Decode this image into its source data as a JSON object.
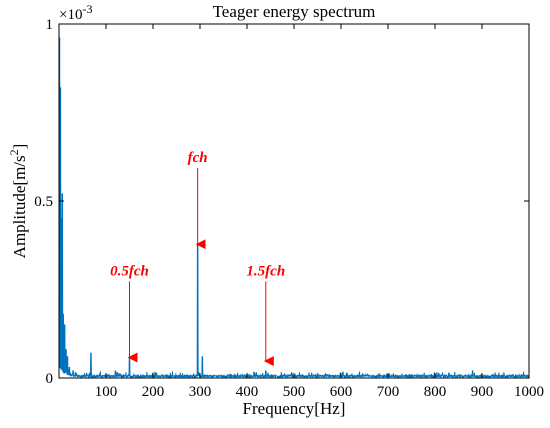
{
  "chart_data": {
    "type": "line",
    "title": "Teager energy spectrum",
    "xlabel": "Frequency[Hz]",
    "ylabel": "Amplitude[m/s²]",
    "ylabel_main": "Amplitude[m/s",
    "ylabel_sup": "2",
    "ylabel_end": "]",
    "y_multiplier_base": "×10",
    "y_multiplier_exp": "-3",
    "xlim": [
      0,
      1000
    ],
    "ylim": [
      0,
      0.001
    ],
    "xticks": [
      100,
      200,
      300,
      400,
      500,
      600,
      700,
      800,
      900,
      1000
    ],
    "xtick_labels": [
      "100",
      "200",
      "300",
      "400",
      "500",
      "600",
      "700",
      "800",
      "900",
      "1000"
    ],
    "yticks": [
      0,
      0.0005,
      0.001
    ],
    "ytick_labels": [
      "0",
      "0.5",
      "1"
    ],
    "grid": false,
    "line_color": "#0072BD",
    "annotation_color": "#FF0000",
    "series": [
      {
        "peaks": [
          {
            "x": 1,
            "y": 0.00096
          },
          {
            "x": 3,
            "y": 0.00082
          },
          {
            "x": 5,
            "y": 0.00045
          },
          {
            "x": 7,
            "y": 0.00052
          },
          {
            "x": 9,
            "y": 0.00018
          },
          {
            "x": 12,
            "y": 0.00015
          },
          {
            "x": 15,
            "y": 8e-05
          },
          {
            "x": 18,
            "y": 6e-05
          },
          {
            "x": 22,
            "y": 3e-05
          },
          {
            "x": 30,
            "y": 2e-05
          },
          {
            "x": 68,
            "y": 7e-05
          },
          {
            "x": 120,
            "y": 2e-05
          },
          {
            "x": 150,
            "y": 5.5e-05
          },
          {
            "x": 295,
            "y": 0.00038
          },
          {
            "x": 305,
            "y": 6e-05
          },
          {
            "x": 440,
            "y": 2e-05
          },
          {
            "x": 880,
            "y": 2e-05
          }
        ]
      }
    ],
    "annotations": [
      {
        "text": "fch",
        "x": 295,
        "y_text": 0.00061,
        "y_head": 0.000375
      },
      {
        "text": "0.5fch",
        "x": 150,
        "y_text": 0.00029,
        "y_head": 5.5e-05
      },
      {
        "text": "1.5fch",
        "x": 440,
        "y_text": 0.00029,
        "y_head": 4.5e-05
      }
    ]
  }
}
